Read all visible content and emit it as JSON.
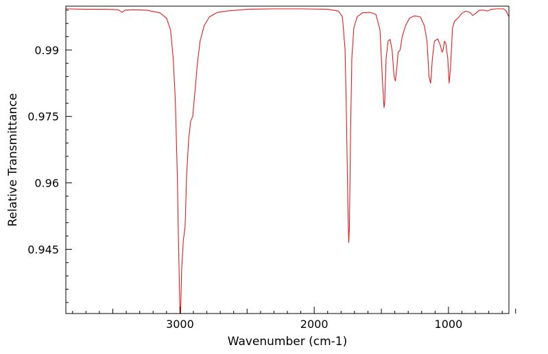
{
  "chart_data": {
    "type": "line",
    "title": "",
    "xlabel": "Wavenumber (cm-1)",
    "ylabel": "Relative Transmittance",
    "xlim": [
      3850,
      550
    ],
    "ylim": [
      0.9305,
      0.9999
    ],
    "x_reversed": true,
    "grid": false,
    "legend": "none",
    "x_ticks": [
      {
        "value": 3000,
        "label": "3000"
      },
      {
        "value": 2000,
        "label": "2000"
      },
      {
        "value": 1000,
        "label": "1000"
      }
    ],
    "y_ticks": [
      {
        "value": 0.99,
        "label": "0.99"
      },
      {
        "value": 0.975,
        "label": "0.975"
      },
      {
        "value": 0.96,
        "label": "0.96"
      },
      {
        "value": 0.945,
        "label": "0.945"
      }
    ],
    "series": [
      {
        "color": "#e41a1c",
        "points": [
          [
            3850,
            0.9993
          ],
          [
            3700,
            0.9992
          ],
          [
            3550,
            0.9992
          ],
          [
            3460,
            0.9991
          ],
          [
            3430,
            0.9985
          ],
          [
            3410,
            0.999
          ],
          [
            3350,
            0.9991
          ],
          [
            3250,
            0.999
          ],
          [
            3150,
            0.9984
          ],
          [
            3100,
            0.9972
          ],
          [
            3070,
            0.9945
          ],
          [
            3050,
            0.988
          ],
          [
            3035,
            0.979
          ],
          [
            3020,
            0.962
          ],
          [
            3010,
            0.945
          ],
          [
            3000,
            0.931
          ],
          [
            2995,
            0.9305
          ],
          [
            2988,
            0.94
          ],
          [
            2975,
            0.947
          ],
          [
            2962,
            0.95
          ],
          [
            2950,
            0.962
          ],
          [
            2935,
            0.97
          ],
          [
            2920,
            0.974
          ],
          [
            2905,
            0.975
          ],
          [
            2890,
            0.98
          ],
          [
            2870,
            0.987
          ],
          [
            2850,
            0.992
          ],
          [
            2820,
            0.9955
          ],
          [
            2780,
            0.9975
          ],
          [
            2720,
            0.9985
          ],
          [
            2650,
            0.9988
          ],
          [
            2500,
            0.9992
          ],
          [
            2300,
            0.9993
          ],
          [
            2100,
            0.9993
          ],
          [
            1900,
            0.9992
          ],
          [
            1820,
            0.9988
          ],
          [
            1790,
            0.9975
          ],
          [
            1770,
            0.99
          ],
          [
            1760,
            0.975
          ],
          [
            1750,
            0.956
          ],
          [
            1743,
            0.9465
          ],
          [
            1738,
            0.95
          ],
          [
            1730,
            0.97
          ],
          [
            1720,
            0.988
          ],
          [
            1705,
            0.995
          ],
          [
            1680,
            0.9975
          ],
          [
            1640,
            0.9984
          ],
          [
            1580,
            0.9985
          ],
          [
            1540,
            0.998
          ],
          [
            1510,
            0.9945
          ],
          [
            1490,
            0.982
          ],
          [
            1480,
            0.977
          ],
          [
            1475,
            0.978
          ],
          [
            1465,
            0.988
          ],
          [
            1450,
            0.992
          ],
          [
            1435,
            0.9924
          ],
          [
            1420,
            0.99
          ],
          [
            1405,
            0.984
          ],
          [
            1395,
            0.983
          ],
          [
            1385,
            0.986
          ],
          [
            1375,
            0.9895
          ],
          [
            1360,
            0.99
          ],
          [
            1345,
            0.993
          ],
          [
            1320,
            0.9955
          ],
          [
            1290,
            0.9972
          ],
          [
            1255,
            0.9977
          ],
          [
            1210,
            0.9975
          ],
          [
            1180,
            0.9955
          ],
          [
            1160,
            0.992
          ],
          [
            1145,
            0.984
          ],
          [
            1133,
            0.9825
          ],
          [
            1120,
            0.988
          ],
          [
            1105,
            0.992
          ],
          [
            1080,
            0.9925
          ],
          [
            1060,
            0.991
          ],
          [
            1048,
            0.9895
          ],
          [
            1040,
            0.99
          ],
          [
            1030,
            0.992
          ],
          [
            1020,
            0.9915
          ],
          [
            1005,
            0.988
          ],
          [
            995,
            0.9825
          ],
          [
            985,
            0.986
          ],
          [
            970,
            0.995
          ],
          [
            955,
            0.9965
          ],
          [
            930,
            0.9972
          ],
          [
            900,
            0.9983
          ],
          [
            870,
            0.9988
          ],
          [
            840,
            0.9985
          ],
          [
            820,
            0.9978
          ],
          [
            800,
            0.9982
          ],
          [
            770,
            0.999
          ],
          [
            740,
            0.999
          ],
          [
            710,
            0.9988
          ],
          [
            680,
            0.9992
          ],
          [
            640,
            0.9993
          ],
          [
            590,
            0.9993
          ],
          [
            570,
            0.9988
          ],
          [
            555,
            0.9978
          ],
          [
            550,
            0.9975
          ]
        ]
      }
    ]
  }
}
